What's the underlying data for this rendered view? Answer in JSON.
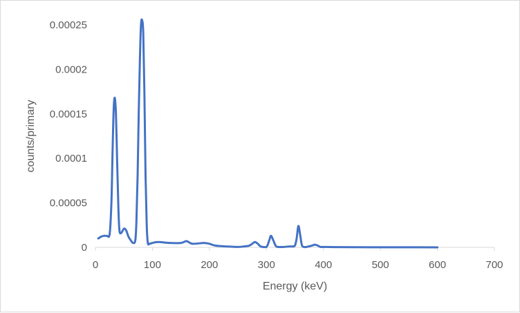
{
  "chart_data": {
    "type": "line",
    "title": "",
    "xlabel": "Energy (keV)",
    "ylabel": "counts/primary",
    "xlim": [
      0,
      700
    ],
    "ylim": [
      0,
      0.00025
    ],
    "x_ticks": [
      "0",
      "100",
      "200",
      "300",
      "400",
      "500",
      "600",
      "700"
    ],
    "y_ticks": [
      "0",
      "0.00005",
      "0.0001",
      "0.00015",
      "0.0002",
      "0.00025"
    ],
    "grid": false,
    "legend": "none",
    "series": [
      {
        "color": "#4472c4",
        "x": [
          5,
          10,
          15,
          20,
          25,
          28,
          30,
          32,
          34,
          36,
          38,
          40,
          42,
          45,
          50,
          54,
          58,
          62,
          66,
          70,
          72,
          74,
          76,
          78,
          80,
          82,
          84,
          86,
          88,
          90,
          92,
          95,
          100,
          110,
          130,
          150,
          160,
          170,
          190,
          200,
          210,
          230,
          250,
          260,
          270,
          275,
          280,
          285,
          290,
          300,
          305,
          308,
          312,
          316,
          320,
          330,
          340,
          345,
          350,
          353,
          356,
          359,
          362,
          365,
          370,
          380,
          385,
          390,
          395,
          400,
          420,
          450,
          500,
          550,
          600
        ],
        "y": [
          1e-05,
          1.2e-05,
          1.3e-05,
          1.3e-05,
          1.5e-05,
          5e-05,
          0.000105,
          0.000155,
          0.000168,
          0.00015,
          0.0001,
          5e-05,
          2e-05,
          1.6e-05,
          2.1e-05,
          1.9e-05,
          1.2e-05,
          8e-06,
          5e-06,
          8e-06,
          3e-05,
          8e-05,
          0.00015,
          0.00021,
          0.00025,
          0.000255,
          0.00024,
          0.00017,
          8e-05,
          2.5e-05,
          5e-06,
          4e-06,
          5e-06,
          6e-06,
          5e-06,
          5e-06,
          7e-06,
          4e-06,
          5e-06,
          4e-06,
          2e-06,
          1e-06,
          5e-07,
          1e-06,
          2e-06,
          4e-06,
          6e-06,
          4e-06,
          1e-06,
          5e-07,
          8e-06,
          1.3e-05,
          8e-06,
          2e-06,
          5e-07,
          5e-07,
          1e-06,
          1e-06,
          2e-06,
          1e-05,
          2.4e-05,
          1.5e-05,
          3e-06,
          5e-07,
          5e-07,
          2e-06,
          3e-06,
          2e-06,
          5e-07,
          5e-07,
          3e-07,
          2e-07,
          1e-07,
          1e-07,
          0
        ]
      }
    ]
  }
}
